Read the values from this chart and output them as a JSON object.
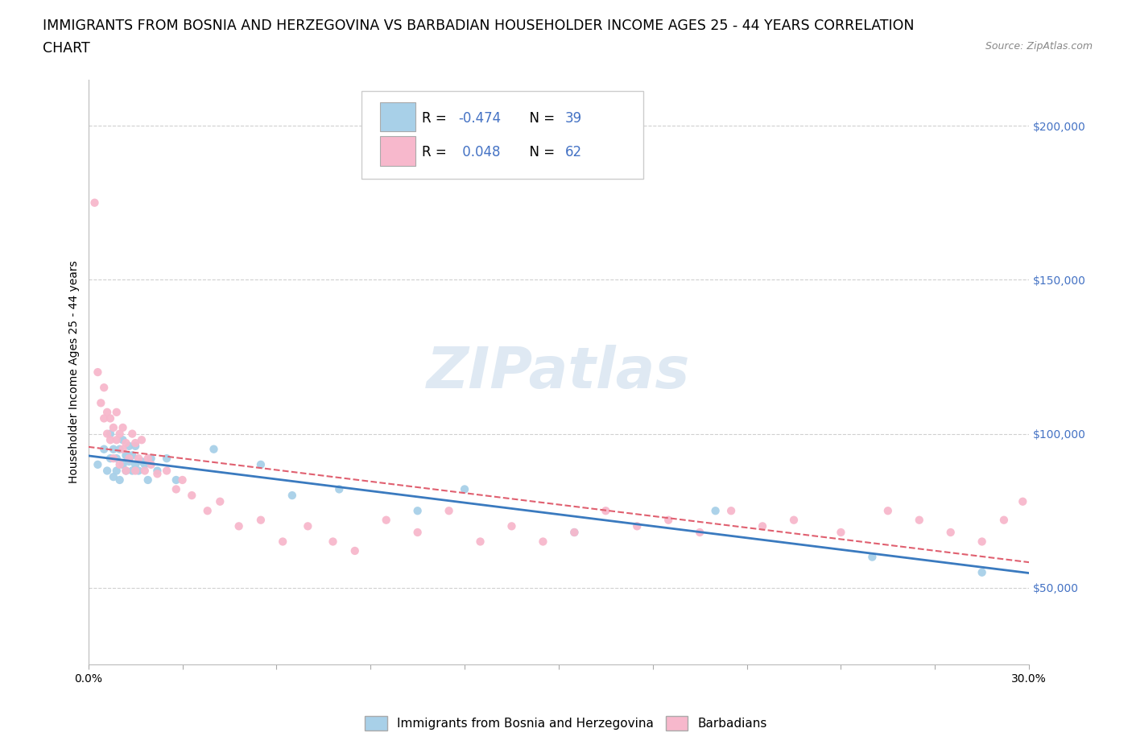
{
  "title_line1": "IMMIGRANTS FROM BOSNIA AND HERZEGOVINA VS BARBADIAN HOUSEHOLDER INCOME AGES 25 - 44 YEARS CORRELATION",
  "title_line2": "CHART",
  "source": "Source: ZipAtlas.com",
  "ylabel": "Householder Income Ages 25 - 44 years",
  "xlim": [
    0.0,
    0.3
  ],
  "ylim": [
    25000,
    215000
  ],
  "yticks": [
    50000,
    100000,
    150000,
    200000
  ],
  "ytick_labels": [
    "$50,000",
    "$100,000",
    "$150,000",
    "$200,000"
  ],
  "xticks": [
    0.0,
    0.03,
    0.06,
    0.09,
    0.12,
    0.15,
    0.18,
    0.21,
    0.24,
    0.27,
    0.3
  ],
  "xtick_labels": [
    "0.0%",
    "",
    "",
    "",
    "",
    "",
    "",
    "",
    "",
    "",
    "30.0%"
  ],
  "legend1_r": "-0.474",
  "legend1_n": "39",
  "legend2_r": "0.048",
  "legend2_n": "62",
  "bosnia_color": "#a8d0e8",
  "barbadian_color": "#f7b8cc",
  "bosnia_line_color": "#3a7abf",
  "barbadian_line_color": "#e06070",
  "watermark": "ZIPatlas",
  "bosnia_scatter_x": [
    0.003,
    0.005,
    0.006,
    0.007,
    0.007,
    0.008,
    0.008,
    0.009,
    0.009,
    0.01,
    0.01,
    0.011,
    0.011,
    0.012,
    0.012,
    0.013,
    0.013,
    0.014,
    0.014,
    0.015,
    0.015,
    0.016,
    0.017,
    0.018,
    0.019,
    0.02,
    0.022,
    0.025,
    0.028,
    0.04,
    0.055,
    0.065,
    0.08,
    0.105,
    0.12,
    0.155,
    0.2,
    0.25,
    0.285
  ],
  "bosnia_scatter_y": [
    90000,
    95000,
    88000,
    92000,
    100000,
    86000,
    95000,
    88000,
    92000,
    85000,
    95000,
    90000,
    98000,
    88000,
    93000,
    91000,
    96000,
    88000,
    93000,
    90000,
    96000,
    88000,
    91000,
    90000,
    85000,
    92000,
    88000,
    92000,
    85000,
    95000,
    90000,
    80000,
    82000,
    75000,
    82000,
    68000,
    75000,
    60000,
    55000
  ],
  "barbadian_scatter_x": [
    0.002,
    0.003,
    0.004,
    0.005,
    0.005,
    0.006,
    0.006,
    0.007,
    0.007,
    0.008,
    0.008,
    0.009,
    0.009,
    0.01,
    0.01,
    0.011,
    0.011,
    0.012,
    0.012,
    0.013,
    0.014,
    0.015,
    0.015,
    0.016,
    0.017,
    0.018,
    0.019,
    0.02,
    0.022,
    0.025,
    0.028,
    0.03,
    0.033,
    0.038,
    0.042,
    0.048,
    0.055,
    0.062,
    0.07,
    0.078,
    0.085,
    0.095,
    0.105,
    0.115,
    0.125,
    0.135,
    0.145,
    0.155,
    0.165,
    0.175,
    0.185,
    0.195,
    0.205,
    0.215,
    0.225,
    0.24,
    0.255,
    0.265,
    0.275,
    0.285,
    0.292,
    0.298
  ],
  "barbadian_scatter_y": [
    175000,
    120000,
    110000,
    105000,
    115000,
    100000,
    107000,
    98000,
    105000,
    92000,
    102000,
    98000,
    107000,
    90000,
    100000,
    95000,
    102000,
    88000,
    97000,
    92000,
    100000,
    88000,
    97000,
    92000,
    98000,
    88000,
    92000,
    90000,
    87000,
    88000,
    82000,
    85000,
    80000,
    75000,
    78000,
    70000,
    72000,
    65000,
    70000,
    65000,
    62000,
    72000,
    68000,
    75000,
    65000,
    70000,
    65000,
    68000,
    75000,
    70000,
    72000,
    68000,
    75000,
    70000,
    72000,
    68000,
    75000,
    72000,
    68000,
    65000,
    72000,
    78000
  ],
  "background_color": "#ffffff",
  "grid_color": "#d0d0d0",
  "title_fontsize": 12.5,
  "axis_label_fontsize": 10,
  "tick_fontsize": 10,
  "legend_fontsize": 12,
  "r_value_color": "#4472c4"
}
